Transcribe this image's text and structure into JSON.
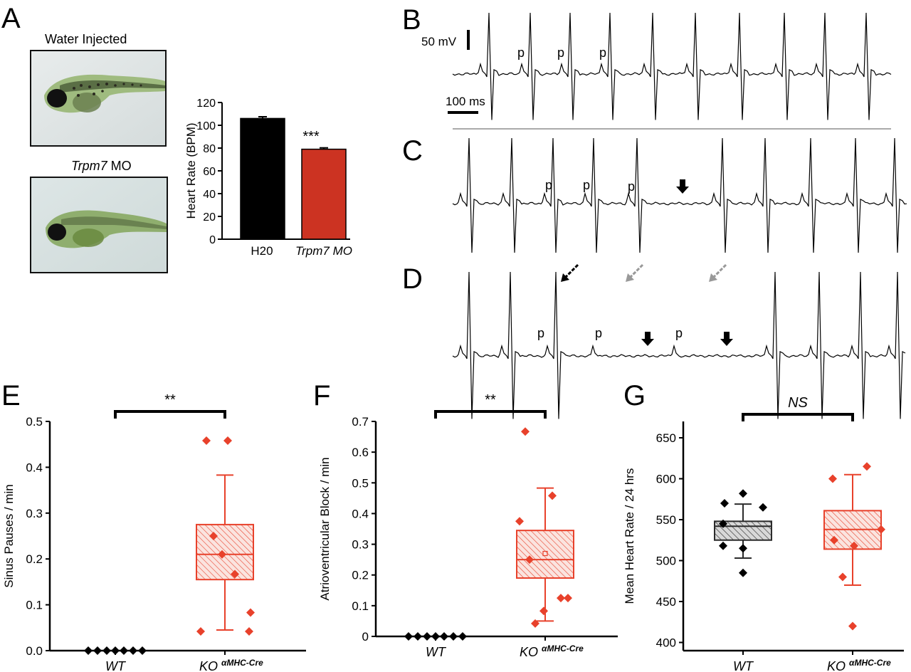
{
  "panels": {
    "a": "A",
    "b": "B",
    "c": "C",
    "d": "D",
    "e": "E",
    "f": "F",
    "g": "G"
  },
  "panel_a": {
    "photo1_caption": "Water Injected",
    "photo2_caption_italic": "Trpm7",
    "photo2_caption_rest": " MO"
  },
  "traces": {
    "voltage_scale": "50 mV",
    "time_scale": "100 ms",
    "p": "p"
  },
  "colors": {
    "control": "#000000",
    "knockdown": "#cc3322",
    "wt_box": "#2b2b2b",
    "ko_box": "#e8412b",
    "gray_arrow": "#999999"
  },
  "chart_data": [
    {
      "id": "a",
      "type": "bar",
      "ylabel": "Heart Rate (BPM)",
      "ylim": [
        0,
        120
      ],
      "yticks": [
        0,
        20,
        40,
        60,
        80,
        100,
        120
      ],
      "categories": [
        "H20",
        "Trpm7 MO"
      ],
      "values": [
        106,
        79
      ],
      "errors": [
        1.5,
        1.2
      ],
      "annotation": "***"
    },
    {
      "id": "e",
      "type": "scatter",
      "ylabel": "Sinus Pauses / min",
      "ylim": [
        0,
        0.5
      ],
      "yticks": [
        "0.0",
        "0.1",
        "0.2",
        "0.3",
        "0.4",
        "0.5"
      ],
      "categories": [
        "WT",
        "KO"
      ],
      "superscript": "αMHC-Cre",
      "significance": "**",
      "wt_points": [
        0,
        0,
        0,
        0,
        0,
        0,
        0
      ],
      "ko_points": [
        0.458,
        0.458,
        0.25,
        0.21,
        0.167,
        0.083,
        0.042,
        0.042
      ],
      "ko_box": {
        "q1": 0.155,
        "median": 0.21,
        "q3": 0.275,
        "whisker_low": 0.045,
        "whisker_high": 0.383
      }
    },
    {
      "id": "f",
      "type": "scatter",
      "ylabel": "Atrioventricular Block / min",
      "ylim": [
        0,
        0.7
      ],
      "yticks": [
        "0",
        "0.1",
        "0.2",
        "0.3",
        "0.4",
        "0.5",
        "0.6",
        "0.7"
      ],
      "categories": [
        "WT",
        "KO"
      ],
      "superscript": "αMHC-Cre",
      "significance": "**",
      "wt_points": [
        0,
        0,
        0,
        0,
        0,
        0,
        0
      ],
      "ko_points": [
        0.667,
        0.458,
        0.375,
        0.25,
        0.125,
        0.125,
        0.083,
        0.042
      ],
      "ko_box": {
        "q1": 0.19,
        "median": 0.25,
        "q3": 0.345,
        "whisker_low": 0.05,
        "whisker_high": 0.483,
        "mean": 0.27
      }
    },
    {
      "id": "g",
      "type": "scatter",
      "ylabel": "Mean Heart Rate / 24 hrs",
      "ylim": [
        390,
        670
      ],
      "yticks": [
        "400",
        "450",
        "500",
        "550",
        "600",
        "650"
      ],
      "categories": [
        "WT",
        "KO"
      ],
      "superscript": "αMHC-Cre",
      "significance": "NS",
      "wt_points": [
        582,
        570,
        565,
        545,
        518,
        515,
        485
      ],
      "ko_points": [
        615,
        600,
        538,
        525,
        518,
        480,
        420
      ],
      "wt_box": {
        "q1": 525,
        "median": 542,
        "q3": 548,
        "whisker_low": 503,
        "whisker_high": 569
      },
      "ko_box": {
        "q1": 514,
        "median": 538,
        "q3": 561,
        "whisker_low": 470,
        "whisker_high": 605
      }
    }
  ]
}
